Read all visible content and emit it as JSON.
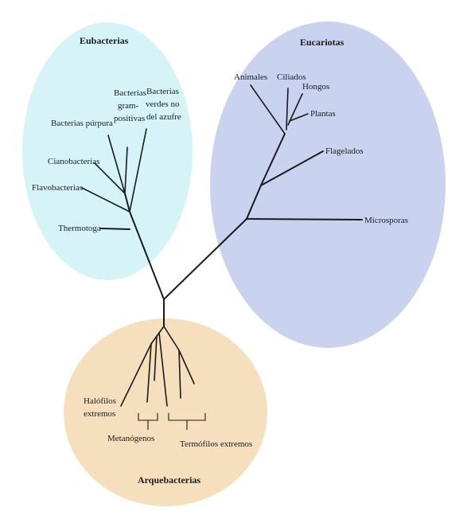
{
  "domains": {
    "eubacteria": {
      "title": "Eubacterias",
      "color": "#d6f4f8"
    },
    "eukaryota": {
      "title": "Eucariotas",
      "color": "#c9d2ee"
    },
    "archaea": {
      "title": "Arquebacterias",
      "color": "#f5dfbd"
    }
  },
  "labels": {
    "bacterias_purpura": "Bacterias púrpura",
    "gram_1": "Bacterias",
    "gram_2": "gram-",
    "gram_3": "positivas",
    "verdes_1": "Bacterias",
    "verdes_2": "verdes no",
    "verdes_3": "del azufre",
    "cianobacterias": "Cianobacterias",
    "flavobacterias": "Flavobacterias",
    "thermotoga": "Thermotoga",
    "animales": "Animales",
    "ciliados": "Ciliados",
    "hongos": "Hongos",
    "plantas": "Plantas",
    "flagelados": "Flagelados",
    "microsporas": "Microsporas",
    "halofilos_1": "Halófilos",
    "halofilos_2": "extremos",
    "metanogenos": "Metanógenos",
    "termofilos": "Termófilos extremos"
  }
}
